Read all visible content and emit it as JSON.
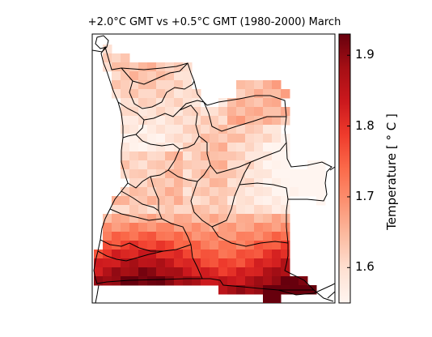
{
  "figure": {
    "title": "+2.0°C GMT vs +0.5°C GMT (1980-2000) March",
    "colorbar": {
      "label": "Temperature [$^\\circ C$]",
      "label_display": "Temperature [ ° C ]",
      "ticks": [
        "1.6",
        "1.7",
        "1.8",
        "1.9"
      ],
      "tick_values": [
        1.6,
        1.7,
        1.8,
        1.9
      ],
      "vmin": 1.55,
      "vmax": 1.93,
      "colormap": "Reds",
      "colors": [
        "#fff5f0",
        "#fee0d2",
        "#fcbba1",
        "#fc9272",
        "#fb6a4a",
        "#ef3b2c",
        "#cb181d",
        "#a50f15",
        "#67000d"
      ]
    },
    "map_region": "Angola",
    "lat_range": [
      -18.5,
      -4.0
    ],
    "lon_range": [
      11.5,
      24.5
    ]
  }
}
